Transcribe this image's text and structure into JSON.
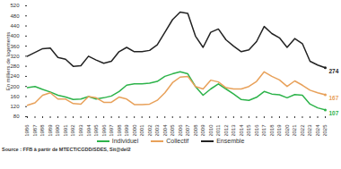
{
  "chart_data": {
    "type": "line",
    "y_label": "En milliers de logements",
    "source": "Source : FFB à partir de MTECT/CGDD/SDES, Sit@del2",
    "x": [
      1986,
      1987,
      1988,
      1989,
      1990,
      1991,
      1992,
      1993,
      1994,
      1995,
      1996,
      1997,
      1998,
      1999,
      2000,
      2001,
      2002,
      2003,
      2004,
      2005,
      2006,
      2007,
      2008,
      2009,
      2010,
      2011,
      2012,
      2013,
      2014,
      2015,
      2016,
      2017,
      2018,
      2019,
      2020,
      2021,
      2022,
      2023,
      2024,
      2025
    ],
    "xlim": [
      1986,
      2025
    ],
    "xticks": [
      1986,
      1987,
      1988,
      1989,
      1990,
      1991,
      1992,
      1993,
      1994,
      1995,
      1996,
      1997,
      1998,
      1999,
      2000,
      2001,
      2002,
      2003,
      2004,
      2005,
      2006,
      2007,
      2008,
      2009,
      2010,
      2011,
      2012,
      2013,
      2014,
      2015,
      2016,
      2017,
      2018,
      2019,
      2020,
      2021,
      2022,
      2023,
      2024,
      2025
    ],
    "ylim": [
      80,
      520
    ],
    "yticks": [
      80,
      120,
      160,
      200,
      240,
      280,
      320,
      360,
      400,
      440,
      480,
      520
    ],
    "grid": false,
    "legend": "bottom",
    "series": [
      {
        "name": "Individuel",
        "color": "#2db34a",
        "values": [
          195,
          200,
          188,
          178,
          165,
          158,
          148,
          150,
          160,
          150,
          155,
          162,
          180,
          205,
          210,
          210,
          213,
          220,
          240,
          250,
          258,
          250,
          200,
          165,
          190,
          210,
          190,
          170,
          148,
          145,
          157,
          180,
          170,
          167,
          155,
          168,
          165,
          130,
          115,
          107
        ],
        "value_labels": [
          null,
          null,
          null,
          null,
          null,
          null,
          null,
          null,
          null,
          null,
          null,
          null,
          null,
          null,
          null,
          null,
          null,
          null,
          null,
          null,
          null,
          null,
          null,
          null,
          null,
          null,
          null,
          null,
          null,
          null,
          null,
          null,
          null,
          null,
          null,
          null,
          null,
          null,
          null,
          "107"
        ]
      },
      {
        "name": "Collectif",
        "color": "#e8a15a",
        "values": [
          125,
          135,
          165,
          175,
          150,
          150,
          132,
          130,
          160,
          155,
          137,
          137,
          158,
          150,
          128,
          128,
          130,
          145,
          175,
          215,
          237,
          240,
          200,
          190,
          225,
          218,
          195,
          190,
          190,
          200,
          220,
          258,
          240,
          226,
          200,
          222,
          205,
          185,
          175,
          167
        ],
        "value_labels": [
          null,
          null,
          null,
          null,
          null,
          null,
          null,
          null,
          null,
          null,
          null,
          null,
          null,
          null,
          null,
          null,
          null,
          null,
          null,
          null,
          null,
          null,
          null,
          null,
          null,
          null,
          null,
          null,
          null,
          null,
          null,
          null,
          null,
          null,
          null,
          null,
          null,
          null,
          null,
          "167"
        ]
      },
      {
        "name": "Ensemble",
        "color": "#222222",
        "values": [
          320,
          335,
          350,
          352,
          315,
          308,
          280,
          282,
          320,
          305,
          292,
          300,
          338,
          355,
          338,
          338,
          343,
          365,
          415,
          465,
          495,
          490,
          400,
          355,
          415,
          428,
          385,
          360,
          338,
          345,
          378,
          438,
          410,
          393,
          355,
          390,
          370,
          300,
          285,
          274
        ],
        "value_labels": [
          null,
          null,
          null,
          null,
          null,
          null,
          null,
          null,
          null,
          null,
          null,
          null,
          null,
          null,
          null,
          null,
          null,
          null,
          null,
          null,
          null,
          null,
          null,
          null,
          null,
          null,
          null,
          null,
          null,
          null,
          null,
          null,
          null,
          null,
          null,
          null,
          null,
          null,
          null,
          "274"
        ]
      }
    ]
  }
}
